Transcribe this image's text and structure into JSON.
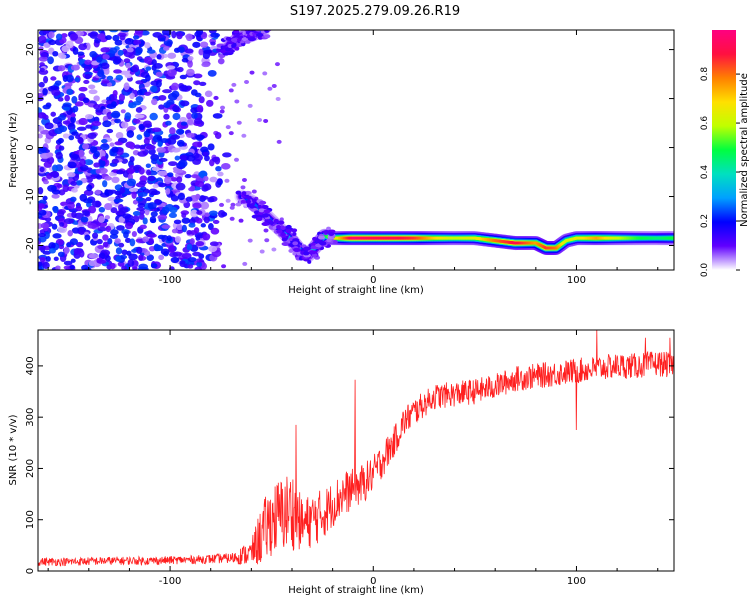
{
  "title": "S197.2025.279.09.26.R19",
  "chart_data": [
    {
      "type": "heatmap",
      "xlabel": "Height of straight line (km)",
      "ylabel": "Frequency (Hz)",
      "xlim": [
        -165,
        148
      ],
      "ylim": [
        -25,
        24
      ],
      "x_ticks": [
        -100,
        0,
        100
      ],
      "y_ticks": [
        -20,
        -10,
        0,
        10,
        20
      ],
      "colorbar": {
        "label": "Normalized spectral amplitude",
        "range": [
          0,
          0.98
        ],
        "ticks": [
          0.0,
          0.2,
          0.4,
          0.6,
          0.8
        ],
        "colors": [
          "#ffffff",
          "#6000ff",
          "#0000ff",
          "#00a0ff",
          "#00e0c0",
          "#00ff40",
          "#c0ff00",
          "#ffe000",
          "#ff8000",
          "#ff1040",
          "#ff0080"
        ]
      },
      "noise_region": {
        "x": [
          -165,
          -70
        ],
        "y": [
          -25,
          24
        ],
        "typical_amplitude": 0.1
      },
      "signal_trace": {
        "x": [
          -65,
          -60,
          -55,
          -50,
          -45,
          -40,
          -36,
          -32,
          -28,
          -24,
          -20,
          -10,
          0,
          10,
          20,
          30,
          40,
          50,
          60,
          70,
          80,
          85,
          90,
          95,
          100,
          110,
          120,
          130,
          140,
          148
        ],
        "freq": [
          -10,
          -11,
          -13,
          -15,
          -17,
          -19,
          -21,
          -22,
          -20,
          -18,
          -18.5,
          -18.5,
          -18.5,
          -18.5,
          -18.5,
          -18.5,
          -18.5,
          -18.5,
          -19,
          -19.5,
          -19.5,
          -20.5,
          -20.5,
          -19,
          -18.5,
          -18.5,
          -18.5,
          -18.5,
          -18.5,
          -18.5
        ],
        "amplitude": [
          0.2,
          0.25,
          0.25,
          0.25,
          0.3,
          0.35,
          0.35,
          0.3,
          0.4,
          0.45,
          0.6,
          0.95,
          0.9,
          0.9,
          0.85,
          0.7,
          0.6,
          0.65,
          0.8,
          0.9,
          0.75,
          0.85,
          0.8,
          0.6,
          0.65,
          0.75,
          0.6,
          0.5,
          0.45,
          0.5
        ]
      },
      "upper_trace": {
        "x": [
          -73,
          -70,
          -67,
          -64,
          -60,
          -57,
          -54
        ],
        "freq": [
          20,
          21,
          22,
          22.5,
          23,
          23.5,
          24
        ],
        "amplitude": [
          0.2,
          0.3,
          0.4,
          0.5,
          0.4,
          0.3,
          0.2
        ]
      }
    },
    {
      "type": "line",
      "color": "#ff2020",
      "xlabel": "Height of straight line (km)",
      "ylabel": "SNR (10 * v/v)",
      "xlim": [
        -165,
        148
      ],
      "ylim": [
        0,
        470
      ],
      "x_ticks": [
        -100,
        0,
        100
      ],
      "y_ticks": [
        0,
        100,
        200,
        300,
        400
      ],
      "series": [
        {
          "name": "SNR",
          "x": [
            -165,
            -150,
            -130,
            -110,
            -90,
            -70,
            -60,
            -55,
            -50,
            -45,
            -40,
            -35,
            -30,
            -25,
            -20,
            -15,
            -10,
            -5,
            0,
            5,
            10,
            15,
            20,
            25,
            30,
            40,
            50,
            60,
            70,
            80,
            90,
            100,
            110,
            120,
            130,
            140,
            148
          ],
          "values": [
            18,
            18,
            20,
            20,
            22,
            25,
            35,
            70,
            100,
            110,
            120,
            90,
            100,
            110,
            130,
            150,
            160,
            170,
            190,
            220,
            250,
            290,
            310,
            325,
            340,
            345,
            350,
            360,
            375,
            380,
            385,
            390,
            395,
            400,
            400,
            405,
            400
          ],
          "noise": [
            8,
            8,
            8,
            8,
            8,
            10,
            25,
            60,
            70,
            75,
            80,
            50,
            55,
            50,
            45,
            45,
            40,
            40,
            35,
            35,
            30,
            30,
            28,
            25,
            25,
            25,
            25,
            25,
            25,
            25,
            25,
            25,
            25,
            25,
            25,
            25,
            25
          ],
          "spikes": [
            {
              "x": -38,
              "y": 285
            },
            {
              "x": -9,
              "y": 373
            },
            {
              "x": 110,
              "y": 470
            },
            {
              "x": 134,
              "y": 455
            },
            {
              "x": 146,
              "y": 455
            },
            {
              "x": 100,
              "y": 275
            }
          ]
        }
      ]
    }
  ]
}
